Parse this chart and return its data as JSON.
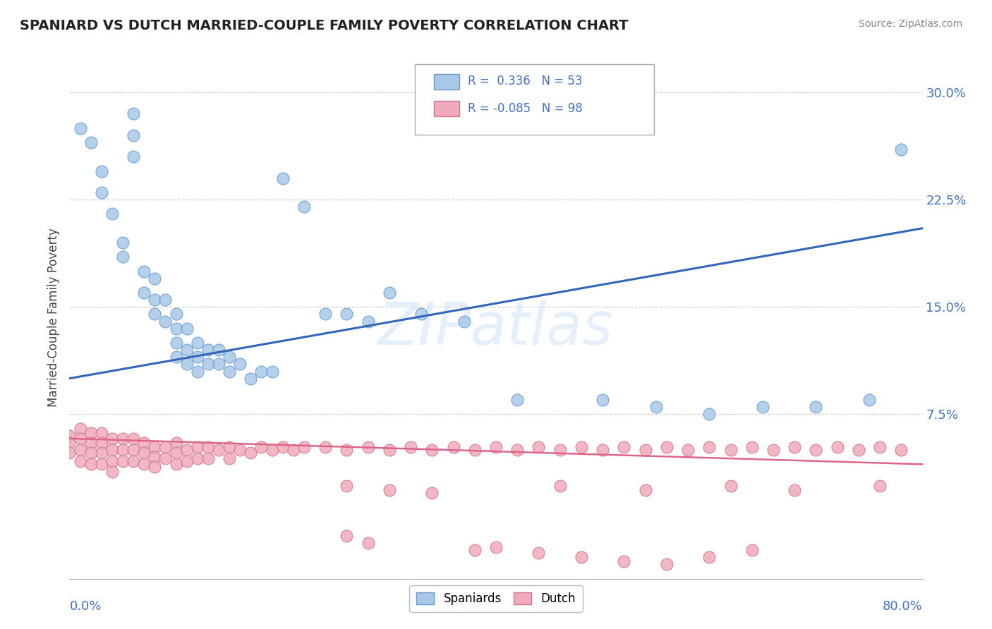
{
  "title": "SPANIARD VS DUTCH MARRIED-COUPLE FAMILY POVERTY CORRELATION CHART",
  "source": "Source: ZipAtlas.com",
  "ylabel": "Married-Couple Family Poverty",
  "xmin": 0.0,
  "xmax": 0.8,
  "ymin": -0.04,
  "ymax": 0.325,
  "ytick_vals": [
    0.075,
    0.15,
    0.225,
    0.3
  ],
  "ytick_labels": [
    "7.5%",
    "15.0%",
    "22.5%",
    "30.0%"
  ],
  "spaniard_color": "#A8C8E8",
  "spaniard_edge": "#6699CC",
  "dutch_color": "#F0AABB",
  "dutch_edge": "#CC7788",
  "regression_blue": "#3366BB",
  "regression_pink": "#DD6688",
  "spaniard_label": "Spaniards",
  "dutch_label": "Dutch",
  "sp_x": [
    0.01,
    0.02,
    0.03,
    0.03,
    0.04,
    0.05,
    0.05,
    0.06,
    0.06,
    0.06,
    0.07,
    0.07,
    0.08,
    0.08,
    0.08,
    0.09,
    0.09,
    0.1,
    0.1,
    0.1,
    0.1,
    0.11,
    0.11,
    0.11,
    0.12,
    0.12,
    0.12,
    0.13,
    0.13,
    0.14,
    0.14,
    0.15,
    0.15,
    0.16,
    0.17,
    0.18,
    0.19,
    0.2,
    0.22,
    0.24,
    0.26,
    0.28,
    0.3,
    0.33,
    0.37,
    0.42,
    0.5,
    0.55,
    0.6,
    0.65,
    0.7,
    0.75,
    0.78
  ],
  "sp_y": [
    0.275,
    0.265,
    0.245,
    0.23,
    0.215,
    0.195,
    0.185,
    0.285,
    0.27,
    0.255,
    0.175,
    0.16,
    0.17,
    0.155,
    0.145,
    0.155,
    0.14,
    0.145,
    0.135,
    0.125,
    0.115,
    0.135,
    0.12,
    0.11,
    0.125,
    0.115,
    0.105,
    0.12,
    0.11,
    0.12,
    0.11,
    0.115,
    0.105,
    0.11,
    0.1,
    0.105,
    0.105,
    0.24,
    0.22,
    0.145,
    0.145,
    0.14,
    0.16,
    0.145,
    0.14,
    0.085,
    0.085,
    0.08,
    0.075,
    0.08,
    0.08,
    0.085,
    0.26
  ],
  "du_x": [
    0.0,
    0.0,
    0.0,
    0.01,
    0.01,
    0.01,
    0.01,
    0.02,
    0.02,
    0.02,
    0.02,
    0.03,
    0.03,
    0.03,
    0.03,
    0.04,
    0.04,
    0.04,
    0.04,
    0.05,
    0.05,
    0.05,
    0.06,
    0.06,
    0.06,
    0.07,
    0.07,
    0.07,
    0.08,
    0.08,
    0.08,
    0.09,
    0.09,
    0.1,
    0.1,
    0.1,
    0.11,
    0.11,
    0.12,
    0.12,
    0.13,
    0.13,
    0.14,
    0.15,
    0.15,
    0.16,
    0.17,
    0.18,
    0.19,
    0.2,
    0.21,
    0.22,
    0.24,
    0.26,
    0.28,
    0.3,
    0.32,
    0.34,
    0.36,
    0.38,
    0.4,
    0.42,
    0.44,
    0.46,
    0.48,
    0.5,
    0.52,
    0.54,
    0.56,
    0.58,
    0.6,
    0.62,
    0.64,
    0.66,
    0.68,
    0.7,
    0.72,
    0.74,
    0.76,
    0.78,
    0.26,
    0.28,
    0.38,
    0.4,
    0.44,
    0.48,
    0.52,
    0.56,
    0.6,
    0.64,
    0.26,
    0.3,
    0.34,
    0.46,
    0.54,
    0.62,
    0.68,
    0.76
  ],
  "du_y": [
    0.06,
    0.055,
    0.048,
    0.065,
    0.058,
    0.05,
    0.042,
    0.062,
    0.055,
    0.048,
    0.04,
    0.062,
    0.055,
    0.048,
    0.04,
    0.058,
    0.05,
    0.042,
    0.035,
    0.058,
    0.05,
    0.042,
    0.058,
    0.05,
    0.042,
    0.055,
    0.048,
    0.04,
    0.052,
    0.045,
    0.038,
    0.052,
    0.044,
    0.055,
    0.048,
    0.04,
    0.05,
    0.042,
    0.052,
    0.044,
    0.052,
    0.044,
    0.05,
    0.052,
    0.044,
    0.05,
    0.048,
    0.052,
    0.05,
    0.052,
    0.05,
    0.052,
    0.052,
    0.05,
    0.052,
    0.05,
    0.052,
    0.05,
    0.052,
    0.05,
    0.052,
    0.05,
    0.052,
    0.05,
    0.052,
    0.05,
    0.052,
    0.05,
    0.052,
    0.05,
    0.052,
    0.05,
    0.052,
    0.05,
    0.052,
    0.05,
    0.052,
    0.05,
    0.052,
    0.05,
    -0.01,
    -0.015,
    -0.02,
    -0.018,
    -0.022,
    -0.025,
    -0.028,
    -0.03,
    -0.025,
    -0.02,
    0.025,
    0.022,
    0.02,
    0.025,
    0.022,
    0.025,
    0.022,
    0.025
  ]
}
